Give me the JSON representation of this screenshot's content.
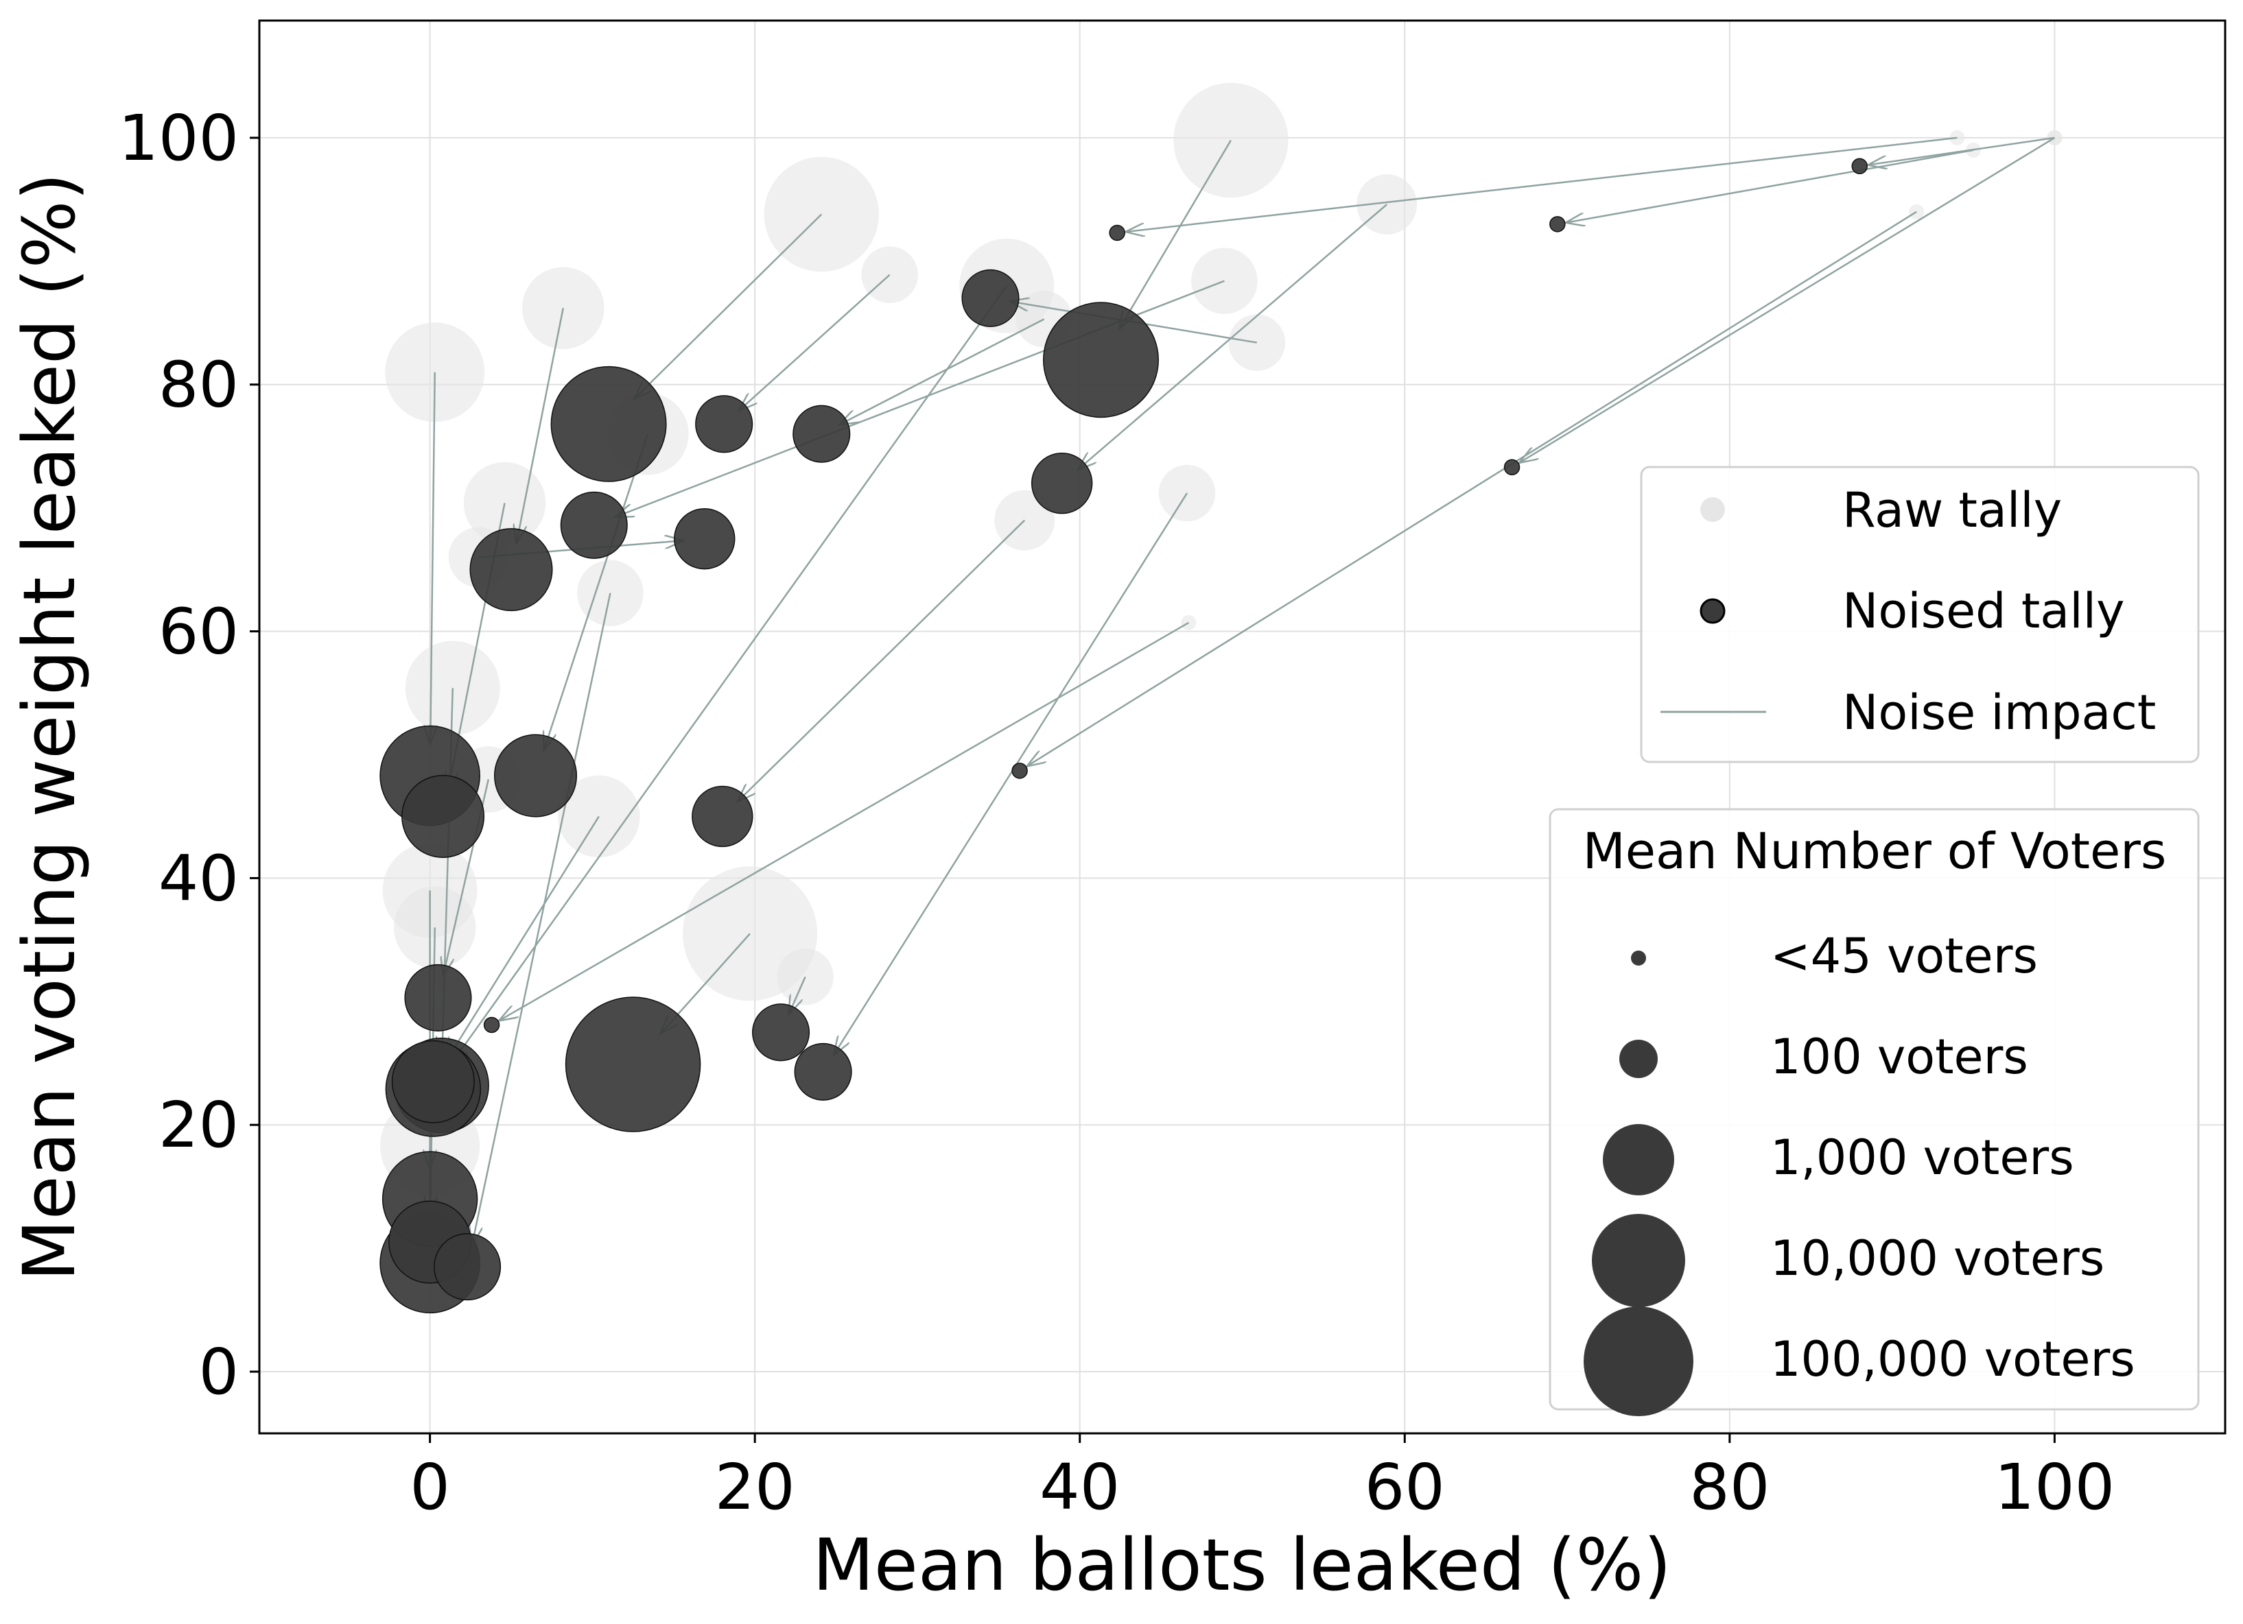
{
  "chart_data": {
    "type": "scatter",
    "xlabel": "Mean ballots leaked (%)",
    "ylabel": "Mean voting weight leaked (%)",
    "xlim": [
      -10.5,
      110.5
    ],
    "ylim": [
      -5,
      109.5
    ],
    "xticks": [
      "0",
      "20",
      "40",
      "60",
      "80",
      "100"
    ],
    "xtick_values": [
      0,
      20,
      40,
      60,
      80,
      100
    ],
    "yticks": [
      "0",
      "20",
      "40",
      "60",
      "80",
      "100"
    ],
    "ytick_values": [
      0,
      20,
      40,
      60,
      80,
      100
    ],
    "grid": true,
    "legend": {
      "position": "right",
      "entries": [
        {
          "label": "Raw tally",
          "marker": "raw"
        },
        {
          "label": "Noised tally",
          "marker": "noised"
        },
        {
          "label": "Noise impact",
          "marker": "line"
        }
      ]
    },
    "size_legend": {
      "title": "Mean Number of Voters",
      "entries": [
        {
          "label": "<45 voters",
          "voters": 45
        },
        {
          "label": "100 voters",
          "voters": 100
        },
        {
          "label": "1,000 voters",
          "voters": 1000
        },
        {
          "label": "10,000 voters",
          "voters": 10000
        },
        {
          "label": "100,000 voters",
          "voters": 100000
        }
      ]
    },
    "colors": {
      "raw": "#e6e6e6",
      "noised": "#3a3a3a",
      "noise_line": "#8fa3a0",
      "grid": "#e0e0e0"
    },
    "series": [
      {
        "name": "Noise impact",
        "pairs": [
          {
            "raw": [
              94,
              100
            ],
            "noised": [
              42.3,
              92.3
            ],
            "voters": 45
          },
          {
            "raw": [
              95,
              99
            ],
            "noised": [
              69.4,
              93.0
            ],
            "voters": 45
          },
          {
            "raw": [
              100,
              100
            ],
            "noised": [
              88.0,
              97.7
            ],
            "voters": 45
          },
          {
            "raw": [
              100,
              100
            ],
            "noised": [
              66.6,
              73.3
            ],
            "voters": 45
          },
          {
            "raw": [
              91.5,
              94
            ],
            "noised": [
              36.3,
              48.7
            ],
            "voters": 45
          },
          {
            "raw": [
              46.7,
              60.7
            ],
            "noised": [
              3.8,
              28.1
            ],
            "voters": 45
          },
          {
            "raw": [
              49.3,
              99.8
            ],
            "noised": [
              41.3,
              82.0
            ],
            "voters": 5000
          },
          {
            "raw": [
              24.1,
              93.8
            ],
            "noised": [
              11.0,
              76.8
            ],
            "voters": 5000
          },
          {
            "raw": [
              28.3,
              88.9
            ],
            "noised": [
              18.1,
              76.8
            ],
            "voters": 400
          },
          {
            "raw": [
              37.8,
              85.3
            ],
            "noised": [
              24.1,
              76.0
            ],
            "voters": 400
          },
          {
            "raw": [
              50.9,
              83.4
            ],
            "noised": [
              34.5,
              87.0
            ],
            "voters": 400
          },
          {
            "raw": [
              48.9,
              88.4
            ],
            "noised": [
              10.1,
              68.6
            ],
            "voters": 700
          },
          {
            "raw": [
              58.9,
              94.6
            ],
            "noised": [
              38.9,
              72.0
            ],
            "voters": 500
          },
          {
            "raw": [
              36.6,
              69.0
            ],
            "noised": [
              18.0,
              45.0
            ],
            "voters": 500
          },
          {
            "raw": [
              46.6,
              71.2
            ],
            "noised": [
              24.2,
              24.3
            ],
            "voters": 400
          },
          {
            "raw": [
              8.2,
              86.2
            ],
            "noised": [
              5.0,
              65.0
            ],
            "voters": 1500
          },
          {
            "raw": [
              0.3,
              81.0
            ],
            "noised": [
              0.0,
              48.3
            ],
            "voters": 3000
          },
          {
            "raw": [
              4.6,
              70.4
            ],
            "noised": [
              0.8,
              45.0
            ],
            "voters": 1500
          },
          {
            "raw": [
              11.1,
              63.1
            ],
            "noised": [
              2.3,
              8.5
            ],
            "voters": 700
          },
          {
            "raw": [
              13.4,
              76.0
            ],
            "noised": [
              6.5,
              48.3
            ],
            "voters": 1500
          },
          {
            "raw": [
              19.7,
              35.5
            ],
            "noised": [
              12.5,
              24.9
            ],
            "voters": 10000
          },
          {
            "raw": [
              23.1,
              32.0
            ],
            "noised": [
              21.6,
              27.5
            ],
            "voters": 400
          },
          {
            "raw": [
              1.4,
              55.4
            ],
            "noised": [
              0.7,
              23.2
            ],
            "voters": 2500
          },
          {
            "raw": [
              3.6,
              48.0
            ],
            "noised": [
              0.5,
              30.3
            ],
            "voters": 700
          },
          {
            "raw": [
              10.4,
              45.0
            ],
            "noised": [
              0.2,
              23.5
            ],
            "voters": 1500
          },
          {
            "raw": [
              0.0,
              39.0
            ],
            "noised": [
              0.0,
              14.0
            ],
            "voters": 2500
          },
          {
            "raw": [
              0.3,
              36.0
            ],
            "noised": [
              0.0,
              10.5
            ],
            "voters": 1500
          },
          {
            "raw": [
              0.0,
              18.3
            ],
            "noised": [
              0.0,
              8.8
            ],
            "voters": 3000
          },
          {
            "raw": [
              3.0,
              66.0
            ],
            "noised": [
              16.9,
              67.5
            ],
            "voters": 500
          },
          {
            "raw": [
              35.5,
              88.0
            ],
            "noised": [
              0.2,
              22.9
            ],
            "voters": 2500
          }
        ]
      }
    ]
  }
}
